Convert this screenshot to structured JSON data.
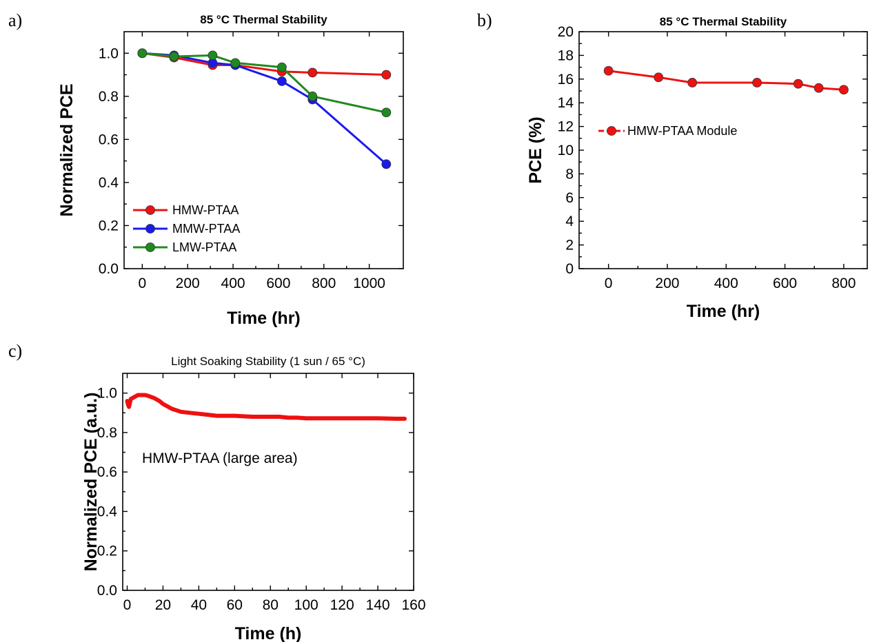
{
  "figure": {
    "panel_labels": [
      "a)",
      "b)",
      "c)"
    ]
  },
  "colors": {
    "red": "#ee1111",
    "blue": "#1a1aee",
    "green": "#1f8a1f"
  },
  "chart_data": [
    {
      "id": "a",
      "type": "line",
      "title": "85 °C Thermal Stability",
      "xlabel": "Time (hr)",
      "ylabel": "Normalized PCE",
      "xlim": [
        -80,
        1150
      ],
      "ylim": [
        0.0,
        1.1
      ],
      "xticks": [
        0,
        200,
        400,
        600,
        800,
        1000
      ],
      "yticks": [
        0.0,
        0.2,
        0.4,
        0.6,
        0.8,
        1.0
      ],
      "ytick_labels": [
        "0.0",
        "0.2",
        "0.4",
        "0.6",
        "0.8",
        "1.0"
      ],
      "legend_position": "lower-left",
      "series": [
        {
          "name": "HMW-PTAA",
          "color": "#ee1111",
          "x": [
            0,
            140,
            310,
            410,
            615,
            750,
            1075
          ],
          "y": [
            1.0,
            0.98,
            0.945,
            0.945,
            0.915,
            0.91,
            0.9
          ]
        },
        {
          "name": "MMW-PTAA",
          "color": "#1a1aee",
          "x": [
            0,
            140,
            310,
            410,
            615,
            750,
            1075
          ],
          "y": [
            1.0,
            0.99,
            0.955,
            0.945,
            0.87,
            0.785,
            0.485
          ]
        },
        {
          "name": "LMW-PTAA",
          "color": "#1f8a1f",
          "x": [
            0,
            140,
            310,
            410,
            615,
            750,
            1075
          ],
          "y": [
            1.0,
            0.985,
            0.99,
            0.955,
            0.935,
            0.8,
            0.725
          ]
        }
      ]
    },
    {
      "id": "b",
      "type": "line",
      "title": "85 °C Thermal Stability",
      "xlabel": "Time (hr)",
      "ylabel": "PCE (%)",
      "xlim": [
        -100,
        880
      ],
      "ylim": [
        0,
        20
      ],
      "xticks": [
        0,
        200,
        400,
        600,
        800
      ],
      "yticks": [
        0,
        2,
        4,
        6,
        8,
        10,
        12,
        14,
        16,
        18,
        20
      ],
      "legend_position": "center-left",
      "series": [
        {
          "name": "HMW-PTAA Module",
          "color": "#ee1111",
          "x": [
            0,
            170,
            285,
            505,
            645,
            715,
            800
          ],
          "y": [
            16.7,
            16.15,
            15.7,
            15.7,
            15.6,
            15.25,
            15.1
          ]
        }
      ]
    },
    {
      "id": "c",
      "type": "line",
      "title": "Light Soaking Stability (1 sun / 65 °C)",
      "xlabel": "Time (h)",
      "ylabel": "Normalized PCE (a.u.)",
      "annotation": "HMW-PTAA (large area)",
      "xlim": [
        -2.5,
        160
      ],
      "ylim": [
        0.0,
        1.1
      ],
      "xticks": [
        0,
        20,
        40,
        60,
        80,
        100,
        120,
        140,
        160
      ],
      "yticks": [
        0.0,
        0.2,
        0.4,
        0.6,
        0.8,
        1.0
      ],
      "ytick_labels": [
        "0.0",
        "0.2",
        "0.4",
        "0.6",
        "0.8",
        "1.0"
      ],
      "series": [
        {
          "name": "",
          "color": "#ee1111",
          "x": [
            0,
            0.5,
            1,
            1.5,
            2,
            3,
            4,
            5,
            6,
            8,
            10,
            12,
            15,
            18,
            20,
            25,
            30,
            35,
            40,
            45,
            50,
            55,
            60,
            70,
            80,
            85,
            90,
            95,
            100,
            110,
            120,
            130,
            140,
            150,
            155
          ],
          "y": [
            0.96,
            0.94,
            0.93,
            0.95,
            0.97,
            0.975,
            0.98,
            0.985,
            0.99,
            0.99,
            0.99,
            0.985,
            0.975,
            0.96,
            0.945,
            0.92,
            0.905,
            0.9,
            0.895,
            0.89,
            0.885,
            0.885,
            0.885,
            0.88,
            0.88,
            0.88,
            0.875,
            0.875,
            0.872,
            0.872,
            0.872,
            0.872,
            0.872,
            0.87,
            0.87
          ]
        }
      ]
    }
  ]
}
